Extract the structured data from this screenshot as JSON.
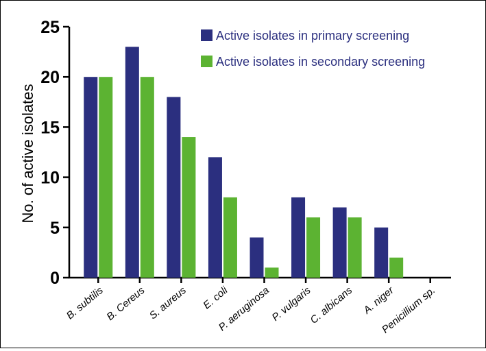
{
  "chart_data": {
    "type": "bar",
    "title": "",
    "xlabel": "",
    "ylabel": "No. of active isolates",
    "ylim": [
      0,
      25
    ],
    "yticks": [
      0,
      5,
      10,
      15,
      20,
      25
    ],
    "grid": false,
    "legend_position": "top-right",
    "categories": [
      "B. subtilis",
      "B. Cereus",
      "S. aureus",
      "E. coli",
      "P. aeruginosa",
      "P. vulgaris",
      "C. albicans",
      "A. niger",
      "Penicillium sp."
    ],
    "series": [
      {
        "name": "Active isolates in primary screening",
        "color": "#2b2f7f",
        "values": [
          20,
          23,
          18,
          12,
          4,
          8,
          7,
          5,
          0
        ]
      },
      {
        "name": "Active isolates in secondary screening",
        "color": "#5cb332",
        "values": [
          20,
          20,
          14,
          8,
          1,
          6,
          6,
          2,
          0
        ]
      }
    ]
  }
}
